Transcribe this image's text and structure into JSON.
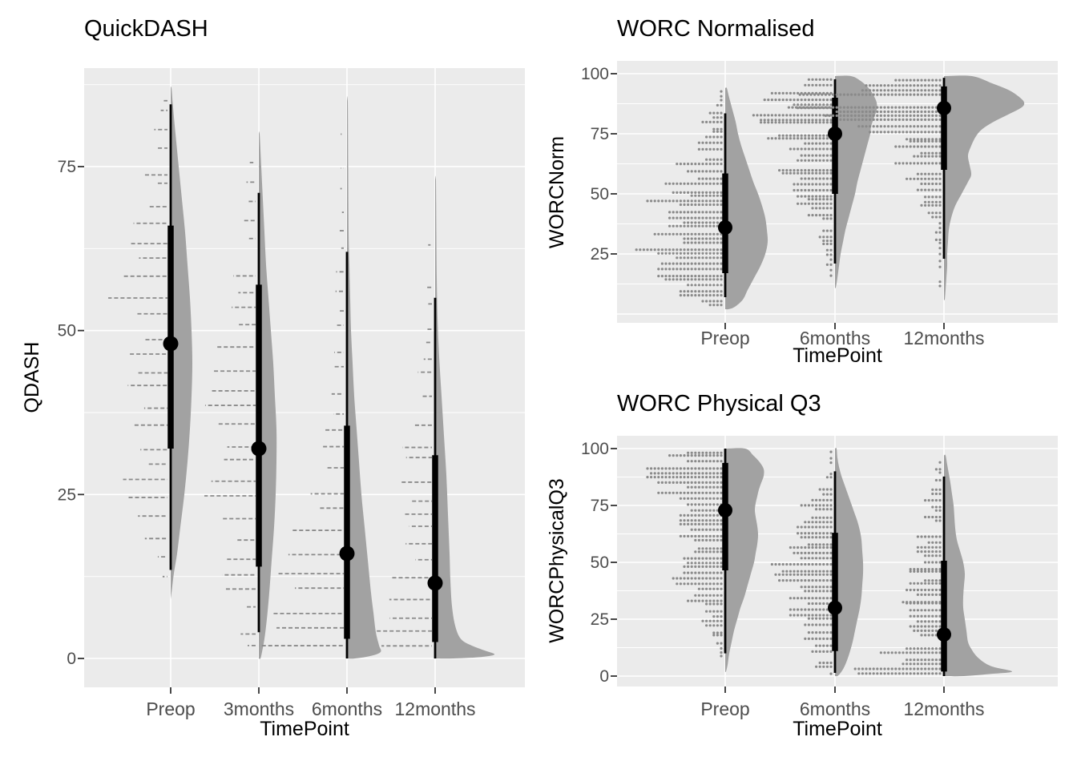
{
  "colors": {
    "panel_bg": "#EBEBEB",
    "grid": "#FFFFFF",
    "violin_fill": "#A2A2A2",
    "rain": "#8A8A8A",
    "interval": "#000000",
    "tick_text": "#4D4D4D",
    "title_text": "#000000"
  },
  "chart_data": [
    {
      "type": "raincloud",
      "title": "QuickDASH",
      "xlabel": "TimePoint",
      "ylabel": "QDASH",
      "y_ticks": [
        0,
        25,
        50,
        75
      ],
      "y_minor_ticks": [
        12.5,
        37.5,
        62.5,
        87.5
      ],
      "ylim": [
        -4.4,
        90
      ],
      "categories": [
        {
          "label": "Preop",
          "median": 48,
          "interval_50": [
            32,
            66
          ],
          "interval_95": [
            13.5,
            84.5
          ],
          "violin": [
            [
              87,
              1
            ],
            [
              84,
              3
            ],
            [
              80,
              6
            ],
            [
              75,
              10
            ],
            [
              70,
              14
            ],
            [
              65,
              18
            ],
            [
              60,
              21
            ],
            [
              55,
              24
            ],
            [
              50,
              26
            ],
            [
              45,
              27
            ],
            [
              40,
              26
            ],
            [
              35,
              24
            ],
            [
              30,
              21
            ],
            [
              25,
              17
            ],
            [
              20,
              12
            ],
            [
              16,
              8
            ],
            [
              13,
              4
            ],
            [
              11,
              2
            ],
            [
              9,
              0
            ]
          ]
        },
        {
          "label": "3months",
          "median": 32,
          "interval_50": [
            14,
            57
          ],
          "interval_95": [
            4,
            71
          ],
          "violin": [
            [
              80,
              1
            ],
            [
              75,
              3
            ],
            [
              70,
              5
            ],
            [
              65,
              7
            ],
            [
              60,
              9
            ],
            [
              55,
              12
            ],
            [
              50,
              15
            ],
            [
              45,
              18
            ],
            [
              40,
              20
            ],
            [
              35,
              22
            ],
            [
              30,
              22
            ],
            [
              25,
              21
            ],
            [
              20,
              19
            ],
            [
              15,
              16
            ],
            [
              10,
              13
            ],
            [
              6,
              10
            ],
            [
              3,
              7
            ],
            [
              1,
              4
            ],
            [
              0,
              2
            ]
          ]
        },
        {
          "label": "6months",
          "median": 16,
          "interval_50": [
            3,
            35.5
          ],
          "interval_95": [
            0,
            62
          ],
          "violin": [
            [
              85,
              1
            ],
            [
              75,
              1.5
            ],
            [
              65,
              2
            ],
            [
              60,
              3
            ],
            [
              55,
              4
            ],
            [
              50,
              5
            ],
            [
              45,
              7
            ],
            [
              40,
              9
            ],
            [
              35,
              12
            ],
            [
              30,
              15
            ],
            [
              25,
              18
            ],
            [
              20,
              22
            ],
            [
              15,
              26
            ],
            [
              10,
              30
            ],
            [
              7,
              33
            ],
            [
              4,
              36
            ],
            [
              2,
              40
            ],
            [
              1,
              42
            ],
            [
              0.4,
              30
            ],
            [
              0,
              10
            ]
          ]
        },
        {
          "label": "12months",
          "median": 11.5,
          "interval_50": [
            2.5,
            31
          ],
          "interval_95": [
            0,
            55
          ],
          "violin": [
            [
              73,
              1
            ],
            [
              65,
              1.5
            ],
            [
              58,
              2
            ],
            [
              52,
              3
            ],
            [
              46,
              5
            ],
            [
              40,
              8
            ],
            [
              34,
              11
            ],
            [
              28,
              14
            ],
            [
              22,
              16
            ],
            [
              16,
              18
            ],
            [
              12,
              19
            ],
            [
              8,
              21
            ],
            [
              5,
              25
            ],
            [
              3,
              32
            ],
            [
              2,
              45
            ],
            [
              1.2,
              62
            ],
            [
              0.6,
              74
            ],
            [
              0.2,
              55
            ],
            [
              0,
              22
            ]
          ]
        }
      ]
    },
    {
      "type": "raincloud",
      "title": "WORC Normalised",
      "xlabel": "TimePoint",
      "ylabel": "WORCNorm",
      "y_ticks": [
        25,
        50,
        75,
        100
      ],
      "y_minor_ticks": [
        12.5,
        37.5,
        62.5,
        87.5
      ],
      "ylim": [
        -3.7,
        105.3
      ],
      "categories": [
        {
          "label": "Preop",
          "median": 36,
          "interval_50": [
            17,
            58.5
          ],
          "interval_95": [
            7,
            83.5
          ],
          "violin": [
            [
              94,
              2
            ],
            [
              90,
              5
            ],
            [
              85,
              9
            ],
            [
              80,
              13
            ],
            [
              75,
              16
            ],
            [
              70,
              20
            ],
            [
              65,
              25
            ],
            [
              60,
              30
            ],
            [
              55,
              35
            ],
            [
              50,
              41
            ],
            [
              45,
              46
            ],
            [
              40,
              50
            ],
            [
              35,
              52
            ],
            [
              30,
              53
            ],
            [
              25,
              50
            ],
            [
              20,
              44
            ],
            [
              15,
              36
            ],
            [
              10,
              28
            ],
            [
              6,
              22
            ],
            [
              3,
              12
            ],
            [
              2,
              4
            ]
          ]
        },
        {
          "label": "6months",
          "median": 75,
          "interval_50": [
            50,
            90
          ],
          "interval_95": [
            21,
            97.7
          ],
          "violin": [
            [
              99,
              20
            ],
            [
              97,
              32
            ],
            [
              94,
              42
            ],
            [
              91,
              48
            ],
            [
              88,
              52
            ],
            [
              85,
              52
            ],
            [
              82,
              49
            ],
            [
              78,
              45
            ],
            [
              75,
              44
            ],
            [
              70,
              40
            ],
            [
              65,
              36
            ],
            [
              60,
              32
            ],
            [
              55,
              28
            ],
            [
              50,
              25
            ],
            [
              45,
              21
            ],
            [
              40,
              17
            ],
            [
              35,
              13
            ],
            [
              30,
              10
            ],
            [
              25,
              7
            ],
            [
              20,
              5
            ],
            [
              15,
              3
            ],
            [
              11,
              1
            ]
          ]
        },
        {
          "label": "12months",
          "median": 85.7,
          "interval_50": [
            60,
            94.7
          ],
          "interval_95": [
            23,
            98.3
          ],
          "violin": [
            [
              99,
              35
            ],
            [
              96,
              60
            ],
            [
              93,
              82
            ],
            [
              90,
              95
            ],
            [
              88,
              100
            ],
            [
              86,
              97
            ],
            [
              83,
              80
            ],
            [
              80,
              62
            ],
            [
              77,
              48
            ],
            [
              74,
              40
            ],
            [
              70,
              34
            ],
            [
              66,
              30
            ],
            [
              62,
              32
            ],
            [
              58,
              34
            ],
            [
              55,
              30
            ],
            [
              50,
              22
            ],
            [
              45,
              14
            ],
            [
              40,
              9
            ],
            [
              35,
              6
            ],
            [
              30,
              5
            ],
            [
              25,
              4
            ],
            [
              20,
              4
            ],
            [
              15,
              3
            ],
            [
              10,
              2
            ],
            [
              6,
              1
            ]
          ]
        }
      ]
    },
    {
      "type": "raincloud",
      "title": "WORC Physical Q3",
      "xlabel": "TimePoint",
      "ylabel": "WORCPhysicalQ3",
      "y_ticks": [
        0,
        25,
        50,
        75,
        100
      ],
      "y_minor_ticks": [
        12.5,
        37.5,
        62.5,
        87.5
      ],
      "ylim": [
        -4.6,
        105.6
      ],
      "categories": [
        {
          "label": "Preop",
          "median": 72.9,
          "interval_50": [
            46.5,
            93.7
          ],
          "interval_95": [
            10,
            100
          ],
          "violin": [
            [
              100,
              25
            ],
            [
              97,
              35
            ],
            [
              94,
              43
            ],
            [
              91,
              48
            ],
            [
              88,
              48
            ],
            [
              85,
              45
            ],
            [
              82,
              42
            ],
            [
              79,
              40
            ],
            [
              76,
              38
            ],
            [
              73,
              37
            ],
            [
              70,
              38
            ],
            [
              66,
              40
            ],
            [
              62,
              41
            ],
            [
              58,
              40
            ],
            [
              54,
              38
            ],
            [
              50,
              36
            ],
            [
              45,
              32
            ],
            [
              40,
              28
            ],
            [
              35,
              24
            ],
            [
              30,
              19
            ],
            [
              25,
              15
            ],
            [
              20,
              11
            ],
            [
              15,
              8
            ],
            [
              10,
              5
            ],
            [
              5,
              3
            ],
            [
              2,
              1
            ]
          ]
        },
        {
          "label": "6months",
          "median": 30,
          "interval_50": [
            11,
            63
          ],
          "interval_95": [
            1.4,
            90
          ],
          "violin": [
            [
              100,
              2
            ],
            [
              96,
              3
            ],
            [
              92,
              5
            ],
            [
              88,
              8
            ],
            [
              84,
              12
            ],
            [
              80,
              16
            ],
            [
              76,
              20
            ],
            [
              72,
              24
            ],
            [
              68,
              28
            ],
            [
              64,
              31
            ],
            [
              60,
              33
            ],
            [
              55,
              34
            ],
            [
              50,
              35
            ],
            [
              45,
              35
            ],
            [
              40,
              34
            ],
            [
              35,
              33
            ],
            [
              30,
              31
            ],
            [
              25,
              28
            ],
            [
              20,
              25
            ],
            [
              15,
              22
            ],
            [
              10,
              18
            ],
            [
              6,
              14
            ],
            [
              3,
              10
            ],
            [
              1,
              6
            ],
            [
              0,
              3
            ]
          ]
        },
        {
          "label": "12months",
          "median": 18.3,
          "interval_50": [
            2,
            50.7
          ],
          "interval_95": [
            0,
            87.7
          ],
          "violin": [
            [
              97,
              2
            ],
            [
              93,
              4
            ],
            [
              89,
              6
            ],
            [
              85,
              8
            ],
            [
              80,
              10
            ],
            [
              75,
              12
            ],
            [
              70,
              13
            ],
            [
              65,
              14
            ],
            [
              60,
              16
            ],
            [
              55,
              20
            ],
            [
              50,
              24
            ],
            [
              45,
              26
            ],
            [
              40,
              25
            ],
            [
              35,
              24
            ],
            [
              30,
              24
            ],
            [
              25,
              26
            ],
            [
              20,
              28
            ],
            [
              15,
              30
            ],
            [
              12,
              34
            ],
            [
              9,
              40
            ],
            [
              6,
              50
            ],
            [
              4,
              62
            ],
            [
              2,
              85
            ],
            [
              1,
              60
            ],
            [
              0,
              25
            ]
          ]
        }
      ]
    }
  ]
}
